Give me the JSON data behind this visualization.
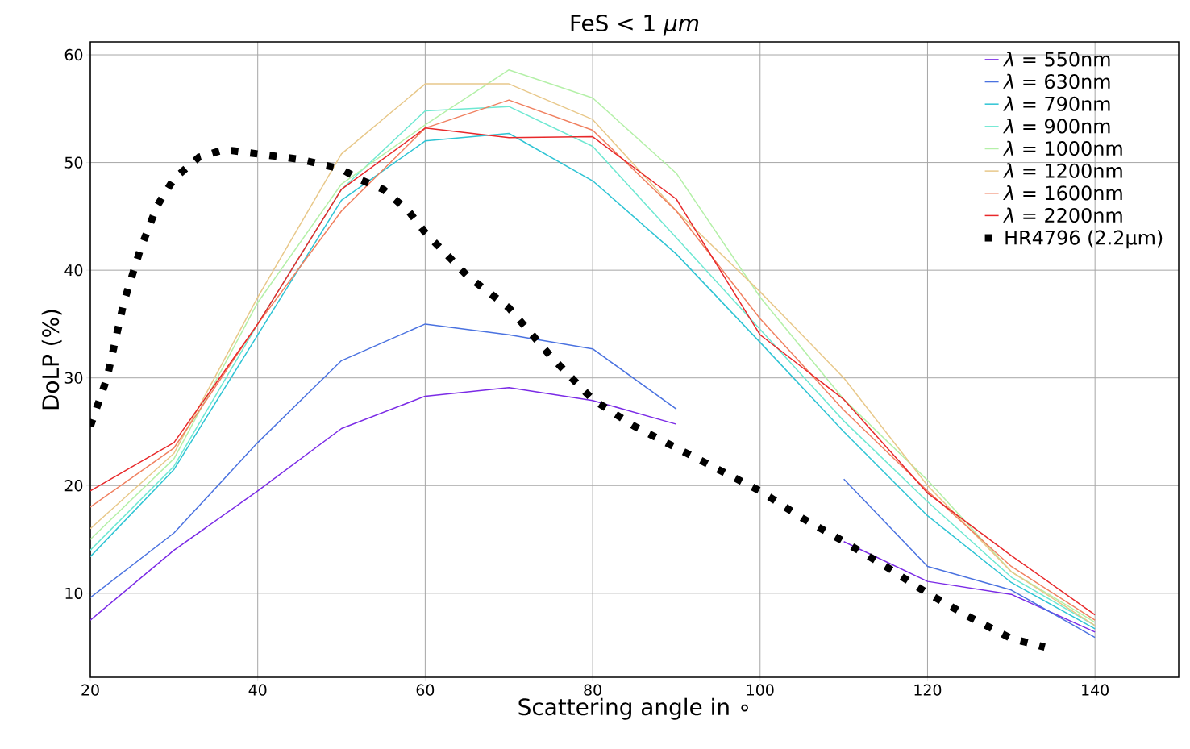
{
  "chart_data": {
    "type": "line",
    "title": "FeS  < 1 *μm*",
    "xlabel": "Scattering angle in ∘",
    "ylabel": "DoLP (%)",
    "x": [
      20,
      30,
      40,
      50,
      60,
      70,
      80,
      90,
      100,
      110,
      120,
      130,
      140
    ],
    "xlim": [
      20,
      150
    ],
    "xticks": [
      20,
      40,
      60,
      80,
      100,
      120,
      140
    ],
    "ylim": [
      2.2,
      61.2
    ],
    "yticks": [
      10,
      20,
      30,
      40,
      50,
      60
    ],
    "grid": true,
    "legend": "top right",
    "marker": "none",
    "line_style": "solid",
    "series": [
      {
        "name": "*λ* = 550nm",
        "color": "#7b2be6",
        "values": [
          7.5,
          14,
          19.5,
          25.3,
          28.3,
          29.1,
          27.9,
          25.7,
          null,
          14.8,
          11.1,
          9.9,
          6.4
        ]
      },
      {
        "name": "*λ* = 630nm",
        "color": "#4a72e0",
        "values": [
          9.6,
          15.6,
          24,
          31.6,
          35,
          34,
          32.7,
          27.1,
          null,
          20.6,
          12.5,
          10.3,
          5.9
        ]
      },
      {
        "name": "*λ* = 790nm",
        "color": "#2ec4d4",
        "values": [
          13.4,
          21.5,
          34,
          46.5,
          52,
          52.7,
          48.3,
          41.5,
          33.3,
          25,
          17.2,
          11,
          6.7
        ]
      },
      {
        "name": "*λ* = 900nm",
        "color": "#6ee8d2",
        "values": [
          14,
          21.8,
          35,
          47.5,
          54.8,
          55.2,
          51.5,
          43,
          34.5,
          26,
          18.5,
          11.5,
          7
        ]
      },
      {
        "name": "*λ* = 1000nm",
        "color": "#b4f0a8",
        "values": [
          15,
          22.5,
          37,
          48,
          53.5,
          58.6,
          56,
          49,
          37.5,
          28,
          20.5,
          12,
          7.3
        ]
      },
      {
        "name": "*λ* = 1200nm",
        "color": "#e8c88a",
        "values": [
          16,
          23,
          37.5,
          50.8,
          57.3,
          57.3,
          54,
          45.5,
          38,
          30,
          20,
          12,
          7
        ]
      },
      {
        "name": "*λ* = 1600nm",
        "color": "#f08060",
        "values": [
          18,
          23.5,
          35,
          45.5,
          53.2,
          55.8,
          53,
          45.5,
          35.5,
          27,
          19.5,
          12.5,
          7.5
        ]
      },
      {
        "name": "*λ* = 2200nm",
        "color": "#e8282a",
        "values": [
          19.5,
          24,
          35,
          47.5,
          53.2,
          52.3,
          52.4,
          46.6,
          34,
          28,
          19.3,
          13.5,
          8
        ]
      },
      {
        "name": "HR4796 (2.2μm)",
        "color": "#000000",
        "line_style": "dotted",
        "x": [
          20,
          22,
          24,
          26,
          28,
          30,
          33,
          36,
          40,
          45,
          50,
          52,
          55,
          58,
          60,
          65,
          70,
          75,
          80,
          85,
          90,
          95,
          100,
          105,
          110,
          115,
          120,
          125,
          130,
          134
        ],
        "values": [
          25.5,
          30,
          37,
          42,
          46,
          48.5,
          50.5,
          51.2,
          50.8,
          50.3,
          49.4,
          48.5,
          47.5,
          45.5,
          43.5,
          39.5,
          36.5,
          32,
          28,
          25.5,
          23.5,
          21.5,
          19.5,
          17,
          14.8,
          12.5,
          10,
          7.8,
          5.8,
          5
        ]
      }
    ]
  }
}
